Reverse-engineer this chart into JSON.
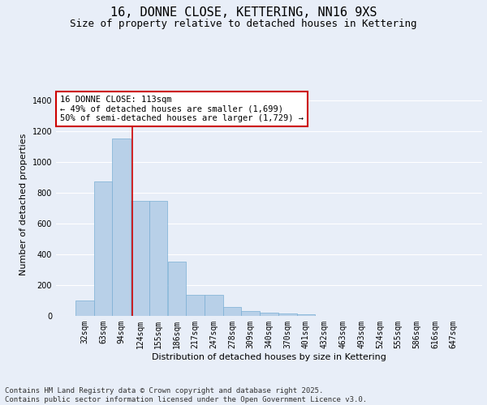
{
  "title_line1": "16, DONNE CLOSE, KETTERING, NN16 9XS",
  "title_line2": "Size of property relative to detached houses in Kettering",
  "xlabel": "Distribution of detached houses by size in Kettering",
  "ylabel": "Number of detached properties",
  "categories": [
    "32sqm",
    "63sqm",
    "94sqm",
    "124sqm",
    "155sqm",
    "186sqm",
    "217sqm",
    "247sqm",
    "278sqm",
    "309sqm",
    "340sqm",
    "370sqm",
    "401sqm",
    "432sqm",
    "463sqm",
    "493sqm",
    "524sqm",
    "555sqm",
    "586sqm",
    "616sqm",
    "647sqm"
  ],
  "values": [
    100,
    875,
    1155,
    750,
    750,
    355,
    135,
    135,
    60,
    30,
    20,
    15,
    10,
    0,
    0,
    0,
    0,
    0,
    0,
    0,
    0
  ],
  "bar_color": "#b8d0e8",
  "bar_edge_color": "#7aafd4",
  "vline_color": "#cc0000",
  "vline_x": 2.6,
  "annotation_text": "16 DONNE CLOSE: 113sqm\n← 49% of detached houses are smaller (1,699)\n50% of semi-detached houses are larger (1,729) →",
  "annotation_box_color": "#ffffff",
  "annotation_box_edge_color": "#cc0000",
  "ylim": [
    0,
    1450
  ],
  "yticks": [
    0,
    200,
    400,
    600,
    800,
    1000,
    1200,
    1400
  ],
  "background_color": "#e8eef8",
  "grid_color": "#ffffff",
  "footer_text": "Contains HM Land Registry data © Crown copyright and database right 2025.\nContains public sector information licensed under the Open Government Licence v3.0.",
  "title_fontsize": 11,
  "subtitle_fontsize": 9,
  "axis_label_fontsize": 8,
  "tick_fontsize": 7,
  "annotation_fontsize": 7.5,
  "footer_fontsize": 6.5
}
